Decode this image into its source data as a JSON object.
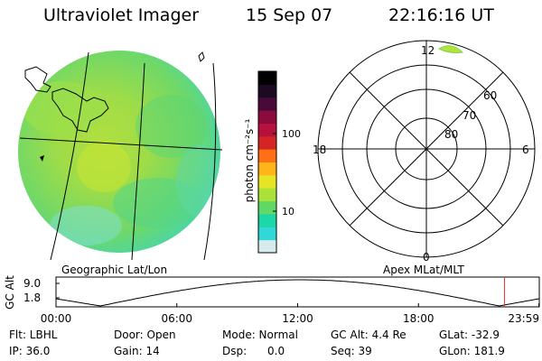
{
  "header": {
    "instrument": "Ultraviolet Imager",
    "date": "15 Sep 07",
    "time": "22:16:16 UT"
  },
  "image_panel": {
    "projection_label": "Geographic Lat/Lon"
  },
  "colorbar": {
    "unit_label": "photon cm⁻²s⁻¹",
    "ticks": [
      "100",
      "10"
    ],
    "colors": [
      "#d6ecec",
      "#30d8d8",
      "#1cd8a6",
      "#5fd866",
      "#aae23a",
      "#e6e424",
      "#ffb51a",
      "#ff6f14",
      "#d42424",
      "#b4123c",
      "#8a0b3c",
      "#480a38",
      "#1c0a22",
      "#000000"
    ]
  },
  "polar_plot": {
    "projection_label": "Apex MLat/MLT",
    "mlt_labels": {
      "top": "12",
      "left": "18",
      "right": "6",
      "bottom": "0"
    },
    "lat_rings": [
      "80",
      "70",
      "60"
    ]
  },
  "altitude_plot": {
    "ylabel": "GC Alt",
    "y_ticks": [
      "9.0",
      "1.8"
    ],
    "x_ticks": [
      "00:00",
      "06:00",
      "12:00",
      "18:00",
      "23:59"
    ],
    "current_time_marker_hours": 22.27,
    "marker_color": "#e03030"
  },
  "footer": {
    "row1": [
      "Flt: LBHL",
      "Door: Open",
      "Mode: Normal",
      "GC Alt: 4.4 Re",
      "GLat: -32.9"
    ],
    "row2": [
      "IP: 36.0",
      "Gain: 14",
      "Dsp:      0.0",
      "Seq: 39",
      "GLon: 181.9"
    ]
  }
}
